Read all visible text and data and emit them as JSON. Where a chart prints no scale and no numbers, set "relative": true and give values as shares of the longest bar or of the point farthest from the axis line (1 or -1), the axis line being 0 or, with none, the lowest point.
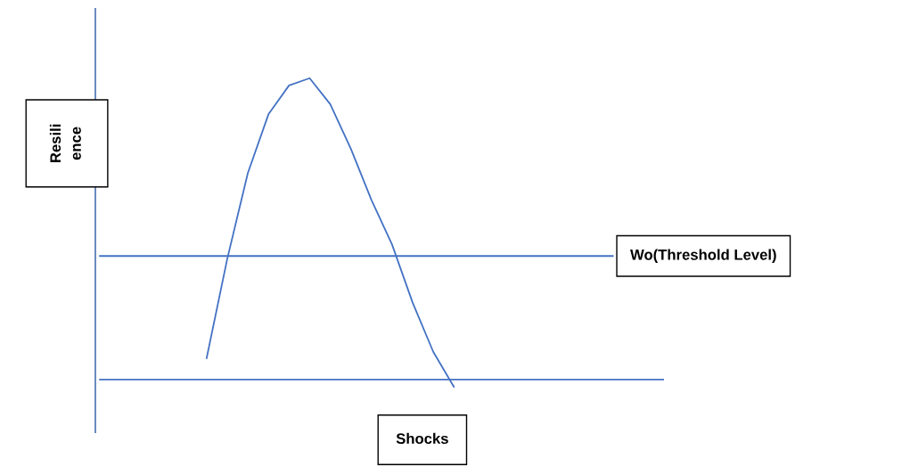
{
  "chart_data": {
    "type": "line",
    "relative": true,
    "xlabel": "Shocks",
    "annotations": [
      "Resili\nence"
    ],
    "categories": [
      null,
      null,
      null,
      null,
      null,
      null,
      null,
      null,
      null,
      null,
      null,
      null,
      null
    ],
    "series": [
      {
        "color": "#4472c4",
        "values": [
          0.071,
          0.4,
          0.685,
          0.88,
          0.976,
          1,
          0.914,
          0.766,
          0.596,
          0.448,
          0.255,
          0.092,
          -0.024
        ]
      }
    ],
    "ref_lines": [
      {
        "axis": "y",
        "value": 0.41,
        "label": "Wo(Threshold Level)",
        "color": "#4472c4"
      },
      {
        "axis": "y",
        "value": 0,
        "color": "#4472c4"
      }
    ]
  }
}
